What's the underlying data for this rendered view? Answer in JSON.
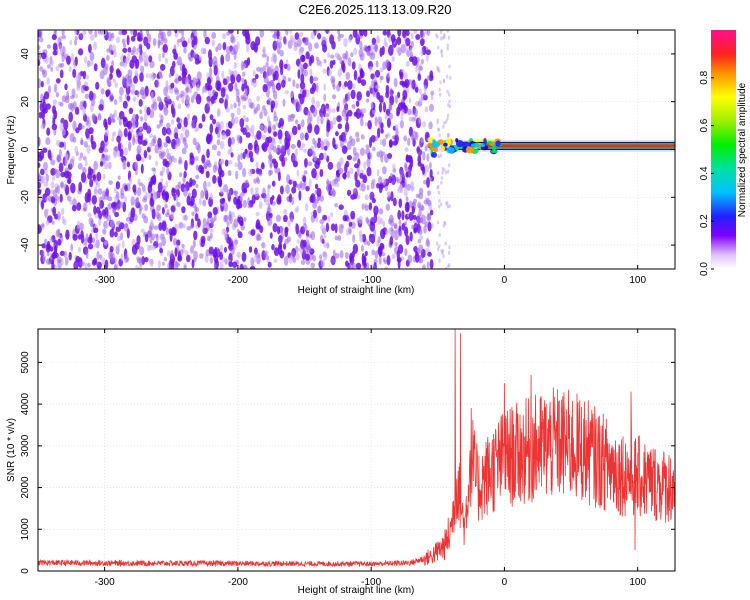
{
  "title": "C2E6.2025.113.13.09.R20",
  "colors": {
    "line": "#ee3333",
    "spec_dot": "#7010e8",
    "spec_light": "#c8a8f4",
    "frame": "#000000",
    "grid": "#d8d8d8"
  },
  "chart_data": [
    {
      "type": "heatmap",
      "name": "spectrogram",
      "xlabel": "Height of straight line (km)",
      "ylabel": "Frequency (Hz)",
      "xlim": [
        -350,
        128
      ],
      "ylim": [
        -50,
        50
      ],
      "xticks": [
        "-300",
        "-200",
        "-100",
        "0",
        "100"
      ],
      "yticks": [
        "-40",
        "-20",
        "0",
        "20",
        "40"
      ],
      "grid": true,
      "noise_region_x": [
        -350,
        -57
      ],
      "carrier_start_x": -57,
      "carrier_freq": 1.5,
      "colorbar": {
        "label": "Normalized spectral amplitude",
        "ticks": [
          "0.0",
          "0.2",
          "0.4",
          "0.6",
          "0.8"
        ],
        "range": [
          0,
          1
        ]
      }
    },
    {
      "type": "line",
      "name": "snr",
      "xlabel": "Height of straight line (km)",
      "ylabel": "SNR (10 * v/v)",
      "xlim": [
        -350,
        128
      ],
      "ylim": [
        0,
        5800
      ],
      "xticks": [
        "-300",
        "-200",
        "-100",
        "0",
        "100"
      ],
      "yticks": [
        "0",
        "1000",
        "2000",
        "3000",
        "4000",
        "5000"
      ],
      "grid": true,
      "envelope": {
        "x": [
          -350,
          -300,
          -200,
          -100,
          -70,
          -55,
          -45,
          -40,
          -37,
          -35,
          -30,
          -25,
          -20,
          -10,
          0,
          10,
          20,
          30,
          40,
          50,
          60,
          70,
          80,
          90,
          100,
          110,
          120,
          128
        ],
        "y": [
          200,
          190,
          180,
          170,
          200,
          350,
          600,
          1000,
          1800,
          2200,
          1000,
          2800,
          2000,
          2400,
          2700,
          2800,
          2900,
          3000,
          3050,
          3000,
          2900,
          2700,
          2500,
          2350,
          2250,
          2150,
          2050,
          2050
        ]
      },
      "spikes": [
        {
          "x": -37,
          "y": 5800
        },
        {
          "x": -33,
          "y": 5700
        },
        {
          "x": 0,
          "y": 4500
        },
        {
          "x": 20,
          "y": 4700
        },
        {
          "x": 95,
          "y": 4300
        },
        {
          "x": 98,
          "y": 500
        }
      ]
    }
  ]
}
